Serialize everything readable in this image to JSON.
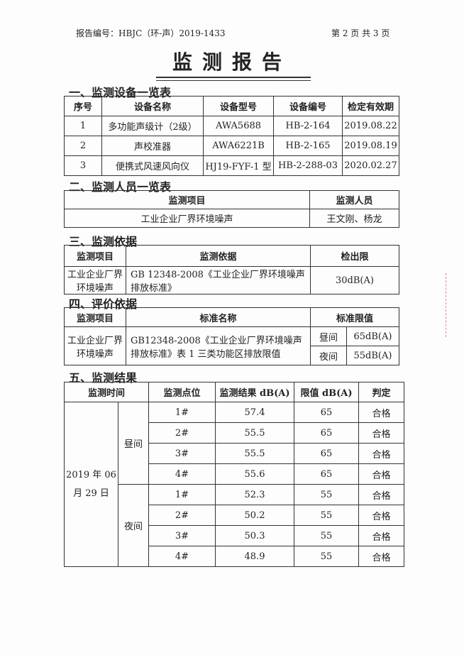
{
  "header": {
    "report_no": "报告编号：HBJC（环-声）2019-1433",
    "page": "第 2 页 共 3 页"
  },
  "title": "监测报告",
  "s1": {
    "heading": "一、监测设备一览表",
    "cols": [
      "序号",
      "设备名称",
      "设备型号",
      "设备编号",
      "检定有效期"
    ],
    "rows": [
      [
        "1",
        "多功能声级计（2级）",
        "AWA5688",
        "HB-2-164",
        "2019.08.22"
      ],
      [
        "2",
        "声校准器",
        "AWA6221B",
        "HB-2-165",
        "2019.08.19"
      ],
      [
        "3",
        "便携式风速风向仪",
        "HJ19-FYF-1 型",
        "HB-2-288-03",
        "2020.02.27"
      ]
    ]
  },
  "s2": {
    "heading": "二、监测人员一览表",
    "cols": [
      "监测项目",
      "监测人员"
    ],
    "row": [
      "工业企业厂界环境噪声",
      "王文刚、杨龙"
    ]
  },
  "s3": {
    "heading": "三、监测依据",
    "cols": [
      "监测项目",
      "监测依据",
      "检出限"
    ],
    "row": [
      "工业企业厂界环境噪声",
      "GB 12348-2008《工业企业厂界环境噪声排放标准》",
      "30dB(A)"
    ]
  },
  "s4": {
    "heading": "四、评价依据",
    "cols": [
      "监测项目",
      "标准名称",
      "标准限值"
    ],
    "item": "工业企业厂界环境噪声",
    "standard": "GB12348-2008《工业企业厂界环境噪声排放标准》表 1 三类功能区排放限值",
    "day": "昼间",
    "day_limit": "65dB(A)",
    "night": "夜间",
    "night_limit": "55dB(A)"
  },
  "s5": {
    "heading": "五、监测结果",
    "cols": [
      "监测时间",
      "监测点位",
      "监测结果 dB(A)",
      "限值 dB(A)",
      "判定"
    ],
    "date": "2019 年 06 月 29 日",
    "day": "昼间",
    "night": "夜间",
    "rows": [
      [
        "1#",
        "57.4",
        "65",
        "合格"
      ],
      [
        "2#",
        "55.5",
        "65",
        "合格"
      ],
      [
        "3#",
        "55.5",
        "65",
        "合格"
      ],
      [
        "4#",
        "55.6",
        "65",
        "合格"
      ],
      [
        "1#",
        "52.3",
        "55",
        "合格"
      ],
      [
        "2#",
        "50.2",
        "55",
        "合格"
      ],
      [
        "3#",
        "50.3",
        "55",
        "合格"
      ],
      [
        "4#",
        "48.9",
        "55",
        "合格"
      ]
    ]
  }
}
